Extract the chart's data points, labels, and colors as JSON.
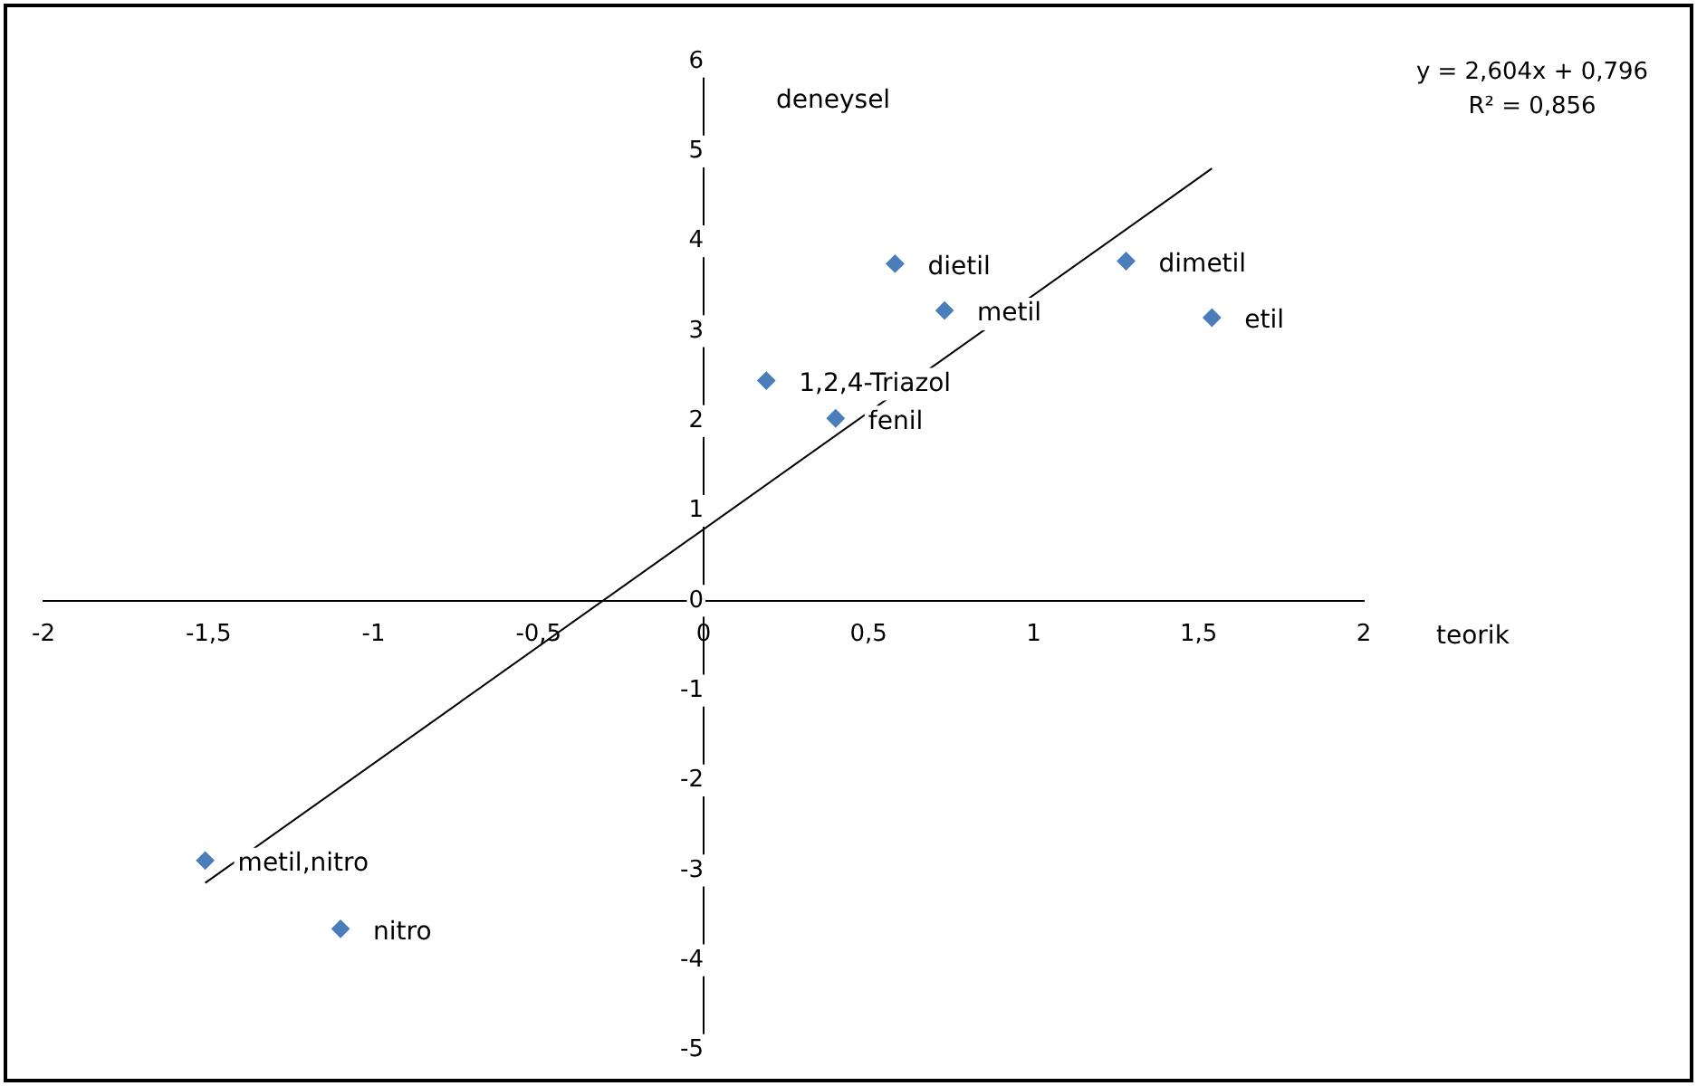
{
  "chart_data": {
    "type": "scatter",
    "xlabel": "teorik",
    "ylabel": "deneysel",
    "xlim": [
      -2,
      2
    ],
    "ylim": [
      -5,
      6
    ],
    "xticks": [
      -2,
      {
        "value": -1.5,
        "label": "-1,5"
      },
      -1,
      {
        "value": -0.5,
        "label": "-0,5"
      },
      0,
      {
        "value": 0.5,
        "label": "0,5"
      },
      1,
      {
        "value": 1.5,
        "label": "1,5"
      },
      2
    ],
    "yticks": [
      -5,
      -4,
      -3,
      -2,
      -1,
      0,
      1,
      2,
      3,
      4,
      5,
      6
    ],
    "grid": false,
    "legend": false,
    "marker": "diamond",
    "series": [
      {
        "type": "scatter",
        "color": "#4a7ebb",
        "x": [
          0.58,
          0.73,
          1.28,
          1.54,
          0.19,
          0.4,
          -1.51,
          -1.1
        ],
        "values": [
          3.75,
          3.23,
          3.78,
          3.15,
          2.45,
          2.03,
          -2.89,
          -3.65
        ]
      },
      {
        "type": "line",
        "color": "#000000",
        "marker": "none",
        "x": [
          -1.51,
          1.54
        ],
        "values": [
          -3.14,
          4.81
        ]
      }
    ],
    "annotations": [
      {
        "text": "dietil",
        "x": 0.58,
        "y": 3.75
      },
      {
        "text": "metil",
        "x": 0.73,
        "y": 3.23
      },
      {
        "text": "dimetil",
        "x": 1.28,
        "y": 3.78
      },
      {
        "text": "etil",
        "x": 1.54,
        "y": 3.15
      },
      {
        "text": "1,2,4-Triazol",
        "x": 0.19,
        "y": 2.45
      },
      {
        "text": "fenil",
        "x": 0.4,
        "y": 2.03
      },
      {
        "text": "metil,nitro",
        "x": -1.51,
        "y": -2.89
      },
      {
        "text": "nitro",
        "x": -1.1,
        "y": -3.65
      },
      "y = 2,604x + 0,796",
      "R² = 0,856"
    ]
  }
}
